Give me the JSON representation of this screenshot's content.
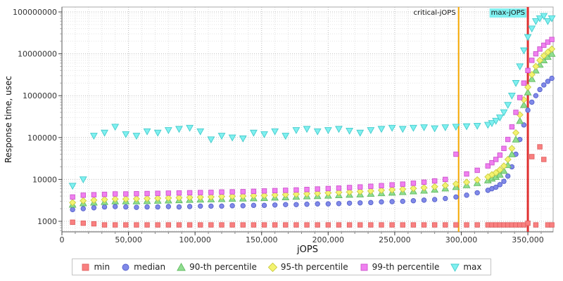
{
  "chart_data": {
    "type": "scatter",
    "title": "",
    "xlabel": "jOPS",
    "ylabel": "Response time, usec",
    "legend_position": "bottom",
    "grid": "dotted",
    "x_axis": {
      "min": 0,
      "max": 369000,
      "minor_step": 10000,
      "ticks": [
        0,
        50000,
        100000,
        150000,
        200000,
        250000,
        300000,
        350000
      ]
    },
    "y_axis": {
      "scale": "log",
      "min": 560,
      "max": 131000000,
      "ticks": [
        1000,
        10000,
        100000,
        1000000,
        10000000,
        100000000
      ]
    },
    "vlines": [
      {
        "name": "critical-jops-line",
        "label": "critical-jOPS",
        "x": 298000,
        "color": "#f5a800",
        "width": 2,
        "label_bg": null
      },
      {
        "name": "max-jops-line",
        "label": "max-jOPS",
        "x": 350000,
        "color": "#e03030",
        "width": 3,
        "label_bg": "#80f0f0"
      }
    ],
    "x": [
      8000,
      16000,
      24000,
      32000,
      40000,
      48000,
      56000,
      64000,
      72000,
      80000,
      88000,
      96000,
      104000,
      112000,
      120000,
      128000,
      136000,
      144000,
      152000,
      160000,
      168000,
      176000,
      184000,
      192000,
      200000,
      208000,
      216000,
      224000,
      232000,
      240000,
      248000,
      256000,
      264000,
      272000,
      280000,
      288000,
      296000,
      304000,
      312000,
      320000,
      323000,
      326000,
      329000,
      332000,
      335000,
      338000,
      341000,
      344000,
      347000,
      350000,
      353000,
      356000,
      359000,
      362000,
      365000,
      368000
    ],
    "series": [
      {
        "name": "min",
        "label": "min",
        "marker": "square",
        "color": "#f98080",
        "stroke": "#e06060",
        "values": [
          950,
          900,
          870,
          820,
          820,
          820,
          820,
          820,
          820,
          820,
          820,
          820,
          820,
          820,
          820,
          820,
          820,
          820,
          820,
          820,
          820,
          820,
          820,
          820,
          820,
          820,
          820,
          820,
          820,
          820,
          820,
          820,
          820,
          820,
          820,
          820,
          820,
          820,
          820,
          820,
          820,
          820,
          820,
          820,
          820,
          820,
          820,
          820,
          820,
          900,
          35000,
          820,
          60000,
          30000,
          820,
          820
        ]
      },
      {
        "name": "median",
        "label": "median",
        "marker": "circle",
        "color": "#8089e8",
        "stroke": "#5560cc",
        "values": [
          1900,
          2000,
          2100,
          2200,
          2250,
          2200,
          2150,
          2200,
          2200,
          2250,
          2200,
          2250,
          2300,
          2300,
          2300,
          2350,
          2350,
          2400,
          2400,
          2450,
          2500,
          2500,
          2550,
          2600,
          2600,
          2650,
          2700,
          2750,
          2800,
          2900,
          2950,
          3000,
          3100,
          3200,
          3300,
          3500,
          3800,
          4200,
          4800,
          5500,
          6000,
          6500,
          7500,
          9000,
          12000,
          20000,
          40000,
          90000,
          200000,
          450000,
          700000,
          1000000,
          1400000,
          1800000,
          2200000,
          2600000
        ]
      },
      {
        "name": "p90",
        "label": "90-th percentile",
        "marker": "triangle-up",
        "color": "#90dd90",
        "stroke": "#60bb60",
        "values": [
          2500,
          2700,
          2800,
          2900,
          3000,
          3000,
          3000,
          3050,
          3100,
          3150,
          3200,
          3250,
          3300,
          3350,
          3400,
          3450,
          3500,
          3550,
          3600,
          3700,
          3750,
          3850,
          3950,
          4000,
          4100,
          4200,
          4300,
          4400,
          4550,
          4700,
          4850,
          5000,
          5200,
          5400,
          5700,
          6100,
          6600,
          7300,
          8200,
          9500,
          10500,
          11500,
          13000,
          16000,
          22000,
          40000,
          90000,
          250000,
          600000,
          1200000,
          2500000,
          4000000,
          5500000,
          7000000,
          8500000,
          10000000
        ]
      },
      {
        "name": "p95",
        "label": "95-th percentile",
        "marker": "diamond",
        "color": "#f3f370",
        "stroke": "#cccc44",
        "values": [
          2800,
          3100,
          3200,
          3300,
          3400,
          3400,
          3450,
          3500,
          3550,
          3600,
          3650,
          3700,
          3750,
          3800,
          3900,
          3950,
          4000,
          4100,
          4150,
          4250,
          4350,
          4450,
          4550,
          4650,
          4750,
          4900,
          5000,
          5150,
          5300,
          5500,
          5650,
          5850,
          6100,
          6350,
          6700,
          7200,
          7800,
          8600,
          9800,
          11500,
          13000,
          14500,
          17000,
          21000,
          30000,
          55000,
          130000,
          350000,
          800000,
          1600000,
          3200000,
          5000000,
          7000000,
          9000000,
          11000000,
          13000000
        ]
      },
      {
        "name": "p99",
        "label": "99-th percentile",
        "marker": "square",
        "color": "#f080f0",
        "stroke": "#cc55cc",
        "values": [
          3800,
          4200,
          4300,
          4400,
          4500,
          4500,
          4550,
          4600,
          4650,
          4700,
          4750,
          4800,
          4850,
          4900,
          5000,
          5050,
          5100,
          5200,
          5300,
          5400,
          5500,
          5600,
          5750,
          5900,
          6050,
          6200,
          6400,
          6600,
          6850,
          7100,
          7400,
          7700,
          8100,
          8600,
          9200,
          10000,
          40000,
          13500,
          16500,
          21000,
          25000,
          30000,
          38000,
          55000,
          90000,
          180000,
          400000,
          900000,
          2000000,
          4000000,
          7000000,
          10000000,
          13000000,
          16000000,
          19000000,
          22000000
        ]
      },
      {
        "name": "max",
        "label": "max",
        "marker": "triangle-down",
        "color": "#80f0f0",
        "stroke": "#44cccc",
        "values": [
          7000,
          10000,
          110000,
          130000,
          180000,
          120000,
          110000,
          140000,
          130000,
          150000,
          160000,
          170000,
          140000,
          90000,
          110000,
          100000,
          95000,
          130000,
          120000,
          140000,
          110000,
          150000,
          160000,
          140000,
          150000,
          160000,
          145000,
          130000,
          150000,
          160000,
          170000,
          160000,
          170000,
          175000,
          165000,
          175000,
          180000,
          185000,
          190000,
          200000,
          220000,
          250000,
          300000,
          400000,
          600000,
          1000000,
          2000000,
          5000000,
          12000000,
          25000000,
          40000000,
          60000000,
          70000000,
          80000000,
          60000000,
          70000000
        ]
      }
    ]
  }
}
